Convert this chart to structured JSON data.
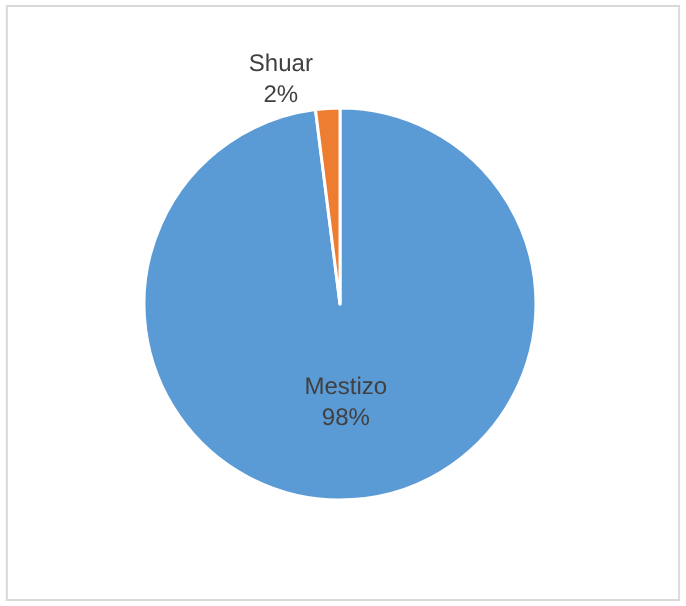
{
  "chart_data": {
    "type": "pie",
    "categories": [
      "Mestizo",
      "Shuar"
    ],
    "values": [
      98,
      2
    ],
    "value_labels": [
      "98%",
      "2%"
    ],
    "colors": [
      "#5b9bd5",
      "#ed7d31"
    ],
    "legend": false
  }
}
